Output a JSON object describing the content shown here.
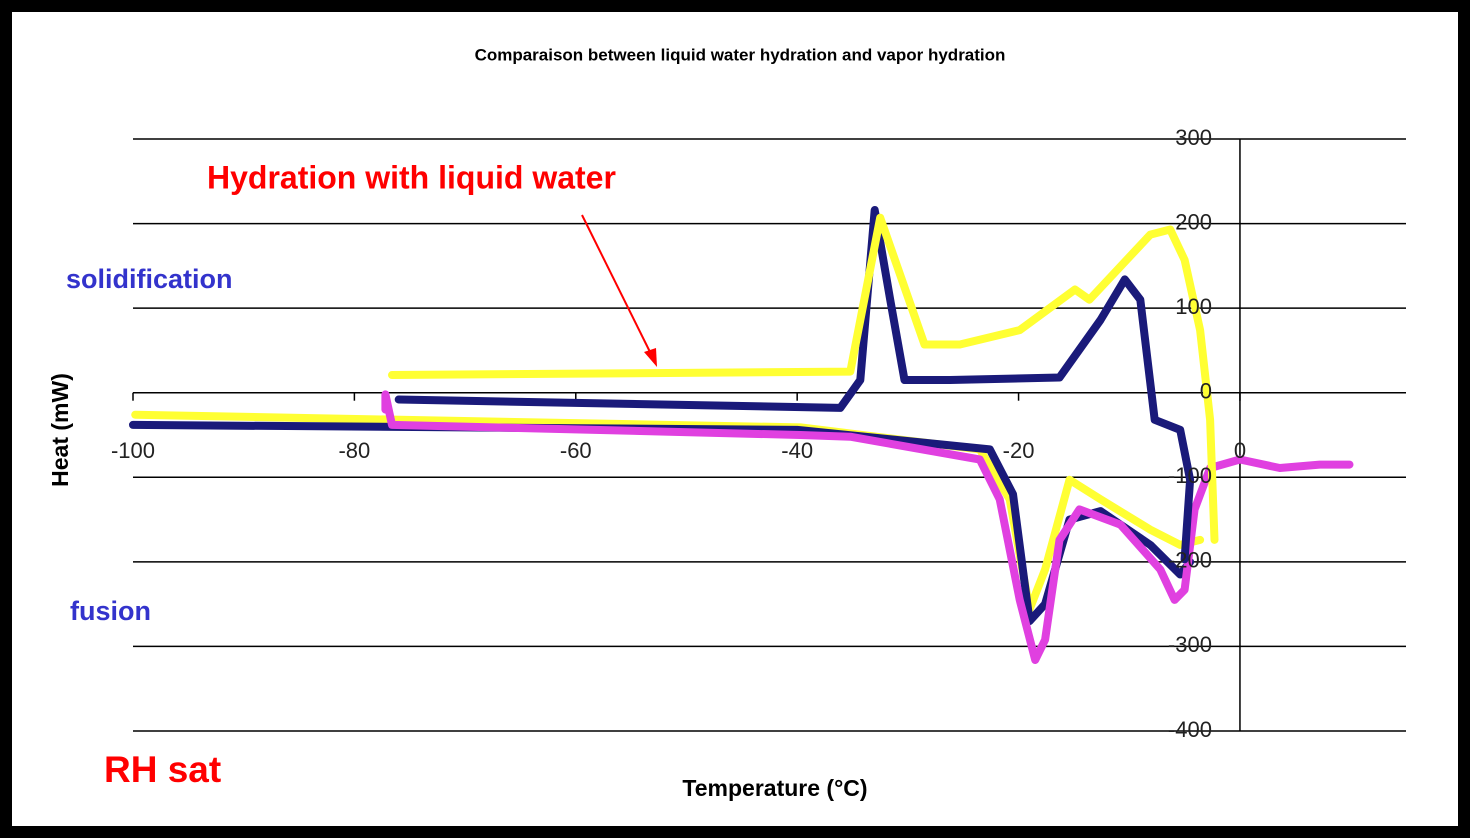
{
  "chart_data": {
    "type": "line",
    "title": "Comparaison between liquid water hydration and vapor hydration",
    "x_label": "Temperature (°C)",
    "y_label": "Heat (mW)",
    "annotations": [
      "Hydration with liquid water",
      "solidification",
      "fusion",
      "RH sat"
    ],
    "xlim": [
      -100,
      15
    ],
    "xticks": [
      -100,
      -80,
      -60,
      -40,
      -20,
      0
    ],
    "ylim": [
      -400,
      300
    ],
    "yticks": [
      300,
      200,
      100,
      0,
      -100,
      -200,
      -300,
      -400
    ],
    "grid": true,
    "series": [
      {
        "color": "#ffff33",
        "x": [
          -99.8,
          -75.9,
          -39.7,
          -23.5,
          -20.8,
          -19,
          -17.6,
          -15.4,
          -12.6,
          -8.1,
          -5.4,
          -3.6
        ],
        "values": [
          -26,
          -32,
          -41,
          -67,
          -126,
          -256,
          -209,
          -103,
          -126,
          -162,
          -180,
          -174
        ]
      },
      {
        "color": "#1a1a7a",
        "x": [
          -100,
          -40,
          -22.6,
          -20.5,
          -19,
          -17.6,
          -15.4,
          -12.6,
          -8.1,
          -5.4,
          -4.5
        ],
        "values": [
          -38,
          -44,
          -67,
          -120,
          -270,
          -250,
          -150,
          -140,
          -180,
          -215,
          -200
        ]
      },
      {
        "color": "#e040e0",
        "x": [
          -77.2,
          -77.2,
          -76.6,
          -39.7,
          -35.2,
          -23.5,
          -21.7,
          -19.9,
          -18.5,
          -17.6,
          -16.3,
          -14.5,
          -10.8,
          -7.2,
          -5.9,
          -5,
          -4.1,
          -2.7,
          0,
          3.6,
          7.2,
          9.9
        ],
        "values": [
          -20,
          -2,
          -38,
          -50,
          -52,
          -79,
          -126,
          -245,
          -316,
          -292,
          -174,
          -138,
          -156,
          -209,
          -245,
          -233,
          -138,
          -89,
          -79,
          -89,
          -85,
          -85
        ]
      },
      {
        "color": "#1a1a7a",
        "x": [
          -76,
          -36.1,
          -34.3,
          -33,
          -31.6,
          -30.3,
          -26.2,
          -16.3,
          -12.6,
          -10.4,
          -9,
          -7.7,
          -5.4,
          -4.5,
          -5
        ],
        "values": [
          -8,
          -18,
          15,
          216,
          110,
          15,
          15,
          18,
          86,
          134,
          110,
          -32,
          -44,
          -103,
          -197
        ]
      },
      {
        "color": "#ffff33",
        "x": [
          -76.6,
          -35.2,
          -32.5,
          -28.5,
          -25.3,
          -19.9,
          -14.9,
          -13.6,
          -8.1,
          -6.3,
          -5,
          -3.6,
          -2.7,
          -2.3
        ],
        "values": [
          21,
          25,
          207,
          57,
          57,
          74,
          122,
          110,
          187,
          193,
          157,
          74,
          -32,
          -174
        ]
      }
    ]
  }
}
